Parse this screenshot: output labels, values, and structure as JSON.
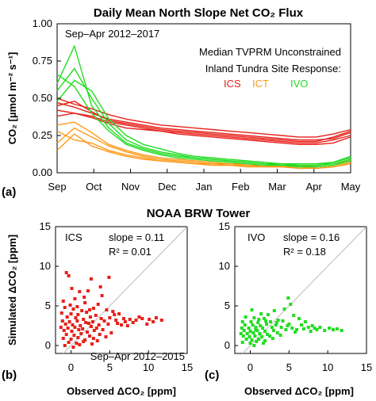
{
  "chart_data": [
    {
      "type": "line",
      "title": "Daily Mean North Slope Net CO₂ Flux",
      "ylabel": "CO₂ [µmol m⁻² s⁻¹]",
      "panel_label": "(a)",
      "period_label": "Sep–Apr 2012–2017",
      "legend_title": [
        "Median TVPRM Unconstrained",
        "Inland Tundra Site Response:"
      ],
      "legend_position": "top-right",
      "x_ticks": [
        "Sep",
        "Oct",
        "Nov",
        "Dec",
        "Jan",
        "Feb",
        "Mar",
        "Apr",
        "May"
      ],
      "yticks": [
        0.0,
        0.25,
        0.5,
        0.75,
        1.0
      ],
      "ylim": [
        0,
        1
      ],
      "series": [
        {
          "name": "ICS",
          "color": "#e8201a",
          "values": [
            0.47,
            0.44,
            0.4,
            0.36,
            0.34,
            0.32,
            0.3,
            0.29,
            0.28,
            0.27,
            0.26,
            0.25,
            0.24,
            0.23,
            0.22,
            0.22,
            0.23,
            0.27
          ]
        },
        {
          "name": "ICS",
          "color": "#e8201a",
          "values": [
            0.42,
            0.4,
            0.38,
            0.34,
            0.32,
            0.3,
            0.28,
            0.27,
            0.26,
            0.25,
            0.24,
            0.23,
            0.22,
            0.21,
            0.2,
            0.2,
            0.22,
            0.25
          ]
        },
        {
          "name": "ICS",
          "color": "#e8201a",
          "values": [
            0.5,
            0.46,
            0.43,
            0.39,
            0.36,
            0.34,
            0.32,
            0.31,
            0.3,
            0.29,
            0.28,
            0.27,
            0.26,
            0.25,
            0.24,
            0.24,
            0.26,
            0.29
          ]
        },
        {
          "name": "ICS",
          "color": "#e8201a",
          "values": [
            0.38,
            0.4,
            0.37,
            0.33,
            0.3,
            0.29,
            0.28,
            0.26,
            0.25,
            0.24,
            0.23,
            0.22,
            0.21,
            0.2,
            0.19,
            0.19,
            0.2,
            0.24
          ]
        },
        {
          "name": "ICS",
          "color": "#e8201a",
          "values": [
            0.45,
            0.48,
            0.41,
            0.35,
            0.33,
            0.31,
            0.29,
            0.28,
            0.27,
            0.26,
            0.25,
            0.24,
            0.23,
            0.22,
            0.21,
            0.21,
            0.24,
            0.28
          ]
        },
        {
          "name": "ICT",
          "color": "#ff9a1a",
          "values": [
            0.2,
            0.3,
            0.24,
            0.18,
            0.14,
            0.11,
            0.09,
            0.08,
            0.07,
            0.06,
            0.06,
            0.05,
            0.05,
            0.04,
            0.04,
            0.04,
            0.05,
            0.08
          ]
        },
        {
          "name": "ICT",
          "color": "#ff9a1a",
          "values": [
            0.28,
            0.22,
            0.2,
            0.15,
            0.12,
            0.1,
            0.08,
            0.07,
            0.06,
            0.05,
            0.05,
            0.04,
            0.04,
            0.04,
            0.03,
            0.03,
            0.04,
            0.06
          ]
        },
        {
          "name": "ICT",
          "color": "#ff9a1a",
          "values": [
            0.15,
            0.26,
            0.18,
            0.14,
            0.11,
            0.09,
            0.08,
            0.07,
            0.06,
            0.06,
            0.05,
            0.05,
            0.04,
            0.04,
            0.04,
            0.03,
            0.04,
            0.07
          ]
        },
        {
          "name": "ICT",
          "color": "#ff9a1a",
          "values": [
            0.32,
            0.34,
            0.27,
            0.19,
            0.15,
            0.12,
            0.1,
            0.09,
            0.08,
            0.07,
            0.06,
            0.06,
            0.05,
            0.05,
            0.05,
            0.04,
            0.05,
            0.09
          ]
        },
        {
          "name": "IVO",
          "color": "#22dd22",
          "values": [
            0.55,
            0.7,
            0.5,
            0.33,
            0.22,
            0.17,
            0.14,
            0.12,
            0.1,
            0.09,
            0.08,
            0.07,
            0.06,
            0.05,
            0.05,
            0.05,
            0.06,
            0.09
          ]
        },
        {
          "name": "IVO",
          "color": "#22dd22",
          "values": [
            0.6,
            0.85,
            0.45,
            0.3,
            0.2,
            0.16,
            0.13,
            0.11,
            0.1,
            0.09,
            0.08,
            0.07,
            0.06,
            0.06,
            0.05,
            0.05,
            0.07,
            0.1
          ]
        },
        {
          "name": "IVO",
          "color": "#22dd22",
          "values": [
            0.48,
            0.62,
            0.55,
            0.36,
            0.25,
            0.19,
            0.16,
            0.13,
            0.11,
            0.1,
            0.09,
            0.08,
            0.07,
            0.06,
            0.06,
            0.06,
            0.07,
            0.11
          ]
        },
        {
          "name": "IVO",
          "color": "#22dd22",
          "values": [
            0.66,
            0.58,
            0.4,
            0.28,
            0.19,
            0.15,
            0.12,
            0.1,
            0.09,
            0.08,
            0.07,
            0.06,
            0.05,
            0.05,
            0.04,
            0.04,
            0.05,
            0.08
          ]
        }
      ]
    },
    {
      "type": "scatter",
      "suptitle": "NOAA BRW Tower",
      "panel_label": "(b)",
      "site": "ICS",
      "slope_text": "slope = 0.11",
      "r2_text": "R² = 0.01",
      "period_label": "Sep–Apr 2012–2015",
      "xlabel": "Observed ΔCO₂ [ppm]",
      "ylabel": "Simulated ΔCO₂ [ppm]",
      "xlim": [
        -2,
        15
      ],
      "ylim": [
        -1,
        15
      ],
      "xticks": [
        0,
        5,
        10,
        15
      ],
      "yticks": [
        0,
        5,
        10,
        15
      ],
      "color": "#e8201a",
      "points": [
        [
          -0.6,
          9.2
        ],
        [
          -0.3,
          8.8
        ],
        [
          2.6,
          8.4
        ],
        [
          4.9,
          8.6
        ],
        [
          0.1,
          7.2
        ],
        [
          1.1,
          6.8
        ],
        [
          2.2,
          6.9
        ],
        [
          4.0,
          6.3
        ],
        [
          -1.0,
          5.6
        ],
        [
          0.5,
          5.9
        ],
        [
          1.8,
          5.4
        ],
        [
          3.5,
          5.2
        ],
        [
          -0.8,
          4.8
        ],
        [
          0.3,
          4.6
        ],
        [
          1.4,
          4.4
        ],
        [
          2.9,
          4.7
        ],
        [
          4.6,
          4.5
        ],
        [
          5.4,
          4.3
        ],
        [
          -1.2,
          4.1
        ],
        [
          0.0,
          4.0
        ],
        [
          0.9,
          3.9
        ],
        [
          2.0,
          4.2
        ],
        [
          3.2,
          3.8
        ],
        [
          6.2,
          4.0
        ],
        [
          -0.5,
          3.6
        ],
        [
          0.6,
          3.5
        ],
        [
          1.6,
          3.3
        ],
        [
          2.5,
          3.6
        ],
        [
          3.9,
          3.4
        ],
        [
          5.0,
          3.5
        ],
        [
          6.8,
          3.4
        ],
        [
          7.6,
          3.3
        ],
        [
          -1.1,
          3.1
        ],
        [
          -0.2,
          3.0
        ],
        [
          0.8,
          3.1
        ],
        [
          1.9,
          2.9
        ],
        [
          2.8,
          3.0
        ],
        [
          4.3,
          3.1
        ],
        [
          5.8,
          3.2
        ],
        [
          8.4,
          3.2
        ],
        [
          -0.7,
          2.7
        ],
        [
          0.2,
          2.6
        ],
        [
          1.2,
          2.5
        ],
        [
          2.3,
          2.8
        ],
        [
          3.6,
          2.6
        ],
        [
          4.8,
          2.7
        ],
        [
          9.2,
          3.4
        ],
        [
          10.1,
          3.3
        ],
        [
          -1.3,
          2.3
        ],
        [
          -0.4,
          2.2
        ],
        [
          0.5,
          2.3
        ],
        [
          1.5,
          2.1
        ],
        [
          2.6,
          2.4
        ],
        [
          3.3,
          2.2
        ],
        [
          6.5,
          2.6
        ],
        [
          11.0,
          3.5
        ],
        [
          -0.9,
          1.9
        ],
        [
          0.1,
          1.8
        ],
        [
          1.0,
          2.0
        ],
        [
          2.1,
          1.7
        ],
        [
          3.0,
          1.9
        ],
        [
          4.1,
          2.0
        ],
        [
          7.3,
          2.5
        ],
        [
          11.7,
          3.2
        ],
        [
          -0.6,
          1.4
        ],
        [
          0.4,
          1.3
        ],
        [
          1.3,
          1.5
        ],
        [
          2.4,
          1.2
        ],
        [
          3.7,
          1.4
        ],
        [
          5.2,
          1.6
        ],
        [
          8.0,
          2.9
        ],
        [
          10.6,
          3.0
        ],
        [
          -1.0,
          0.9
        ],
        [
          0.0,
          0.8
        ],
        [
          0.9,
          1.0
        ],
        [
          1.8,
          0.7
        ],
        [
          2.9,
          0.9
        ],
        [
          4.5,
          1.1
        ],
        [
          6.0,
          2.8
        ],
        [
          9.8,
          2.7
        ],
        [
          -0.3,
          0.4
        ],
        [
          0.7,
          0.3
        ],
        [
          1.6,
          0.5
        ],
        [
          2.7,
          0.2
        ],
        [
          -0.8,
          0.0
        ],
        [
          0.3,
          -0.2
        ],
        [
          1.1,
          0.1
        ],
        [
          3.4,
          0.6
        ],
        [
          -0.1,
          5.1
        ],
        [
          1.7,
          6.1
        ],
        [
          3.8,
          7.4
        ],
        [
          0.8,
          4.9
        ],
        [
          2.4,
          4.5
        ],
        [
          5.6,
          3.9
        ],
        [
          7.0,
          3.0
        ],
        [
          8.8,
          3.6
        ]
      ]
    },
    {
      "type": "scatter",
      "panel_label": "(c)",
      "site": "IVO",
      "slope_text": "slope = 0.16",
      "r2_text": "R² = 0.18",
      "xlabel": "Observed ΔCO₂ [ppm]",
      "xlim": [
        -2,
        15
      ],
      "ylim": [
        -1,
        15
      ],
      "xticks": [
        0,
        5,
        10,
        15
      ],
      "yticks": [
        0,
        5,
        10,
        15
      ],
      "color": "#22dd22",
      "points": [
        [
          4.9,
          6.0
        ],
        [
          5.2,
          5.2
        ],
        [
          4.4,
          4.6
        ],
        [
          3.1,
          4.4
        ],
        [
          0.2,
          4.5
        ],
        [
          1.4,
          4.0
        ],
        [
          2.3,
          3.9
        ],
        [
          5.6,
          3.8
        ],
        [
          -0.6,
          3.6
        ],
        [
          0.5,
          3.5
        ],
        [
          1.8,
          3.4
        ],
        [
          3.6,
          3.2
        ],
        [
          6.3,
          3.4
        ],
        [
          -1.0,
          3.0
        ],
        [
          0.1,
          3.0
        ],
        [
          1.0,
          2.9
        ],
        [
          2.6,
          3.0
        ],
        [
          4.2,
          3.1
        ],
        [
          7.1,
          3.0
        ],
        [
          -0.7,
          2.6
        ],
        [
          0.3,
          2.6
        ],
        [
          1.3,
          2.5
        ],
        [
          2.1,
          2.7
        ],
        [
          3.3,
          2.6
        ],
        [
          5.0,
          2.7
        ],
        [
          6.6,
          2.6
        ],
        [
          8.0,
          2.5
        ],
        [
          -1.1,
          2.2
        ],
        [
          -0.2,
          2.2
        ],
        [
          0.7,
          2.3
        ],
        [
          1.6,
          2.2
        ],
        [
          2.8,
          2.3
        ],
        [
          4.0,
          2.3
        ],
        [
          5.4,
          2.2
        ],
        [
          7.5,
          2.3
        ],
        [
          9.0,
          2.3
        ],
        [
          10.2,
          2.2
        ],
        [
          -0.8,
          1.9
        ],
        [
          0.0,
          1.8
        ],
        [
          0.9,
          1.9
        ],
        [
          1.9,
          1.8
        ],
        [
          3.0,
          1.9
        ],
        [
          4.6,
          2.0
        ],
        [
          6.0,
          2.0
        ],
        [
          8.6,
          2.0
        ],
        [
          11.2,
          2.1
        ],
        [
          11.8,
          1.9
        ],
        [
          -1.2,
          1.5
        ],
        [
          -0.4,
          1.5
        ],
        [
          0.4,
          1.6
        ],
        [
          1.2,
          1.5
        ],
        [
          2.2,
          1.4
        ],
        [
          3.5,
          1.6
        ],
        [
          5.8,
          1.7
        ],
        [
          7.8,
          1.8
        ],
        [
          9.6,
          1.9
        ],
        [
          -0.9,
          1.2
        ],
        [
          -0.1,
          1.1
        ],
        [
          0.6,
          1.2
        ],
        [
          1.5,
          1.1
        ],
        [
          2.5,
          1.2
        ],
        [
          3.9,
          1.3
        ],
        [
          -0.5,
          0.8
        ],
        [
          0.2,
          0.7
        ],
        [
          1.1,
          0.8
        ],
        [
          1.9,
          0.6
        ],
        [
          2.9,
          0.9
        ],
        [
          -1.0,
          0.4
        ],
        [
          0.0,
          0.3
        ],
        [
          0.8,
          0.5
        ],
        [
          1.7,
          0.3
        ],
        [
          0.5,
          0.0
        ],
        [
          10.7,
          2.0
        ],
        [
          8.3,
          2.2
        ],
        [
          6.9,
          2.1
        ],
        [
          4.8,
          2.5
        ],
        [
          3.4,
          2.9
        ],
        [
          2.0,
          3.1
        ],
        [
          1.1,
          3.3
        ],
        [
          0.7,
          2.0
        ]
      ]
    }
  ]
}
